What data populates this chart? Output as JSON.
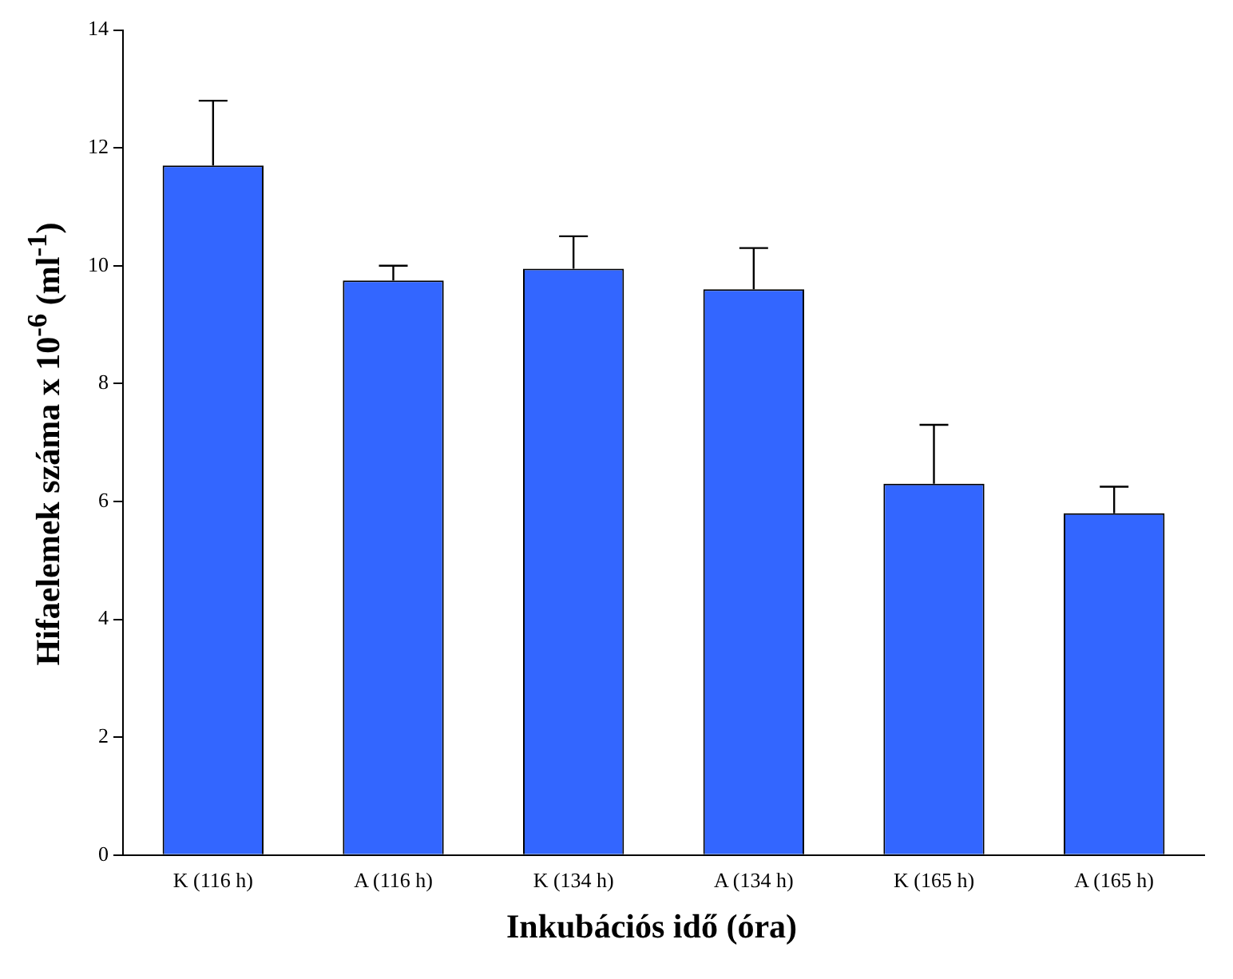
{
  "chart_data": {
    "type": "bar",
    "xlabel": "Inkubációs idő (óra)",
    "ylabel": "Hifaelemek száma x 10$^{-6}$ (ml$^{-1}$)",
    "categories": [
      "K (116 h)",
      "A (116 h)",
      "K (134 h)",
      "A (134 h)",
      "K (165 h)",
      "A (165 h)"
    ],
    "values": [
      11.7,
      9.75,
      9.95,
      9.6,
      6.3,
      5.8
    ],
    "errors": [
      [
        11.7,
        12.8
      ],
      [
        9.75,
        10.0
      ],
      [
        9.95,
        10.5
      ],
      [
        9.6,
        10.3
      ],
      [
        6.3,
        7.3
      ],
      [
        5.8,
        6.25
      ]
    ],
    "color": "#3366ff",
    "ylim": [
      0,
      14
    ],
    "yticks": [
      0,
      2,
      4,
      6,
      8,
      10,
      12,
      14
    ],
    "grid": false,
    "legend": false
  }
}
